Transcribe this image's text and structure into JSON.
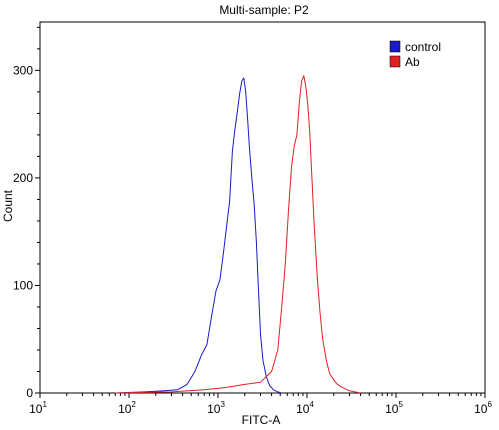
{
  "chart_data": {
    "type": "line",
    "title": "Multi-sample: P2",
    "xlabel": "FITC-A",
    "ylabel": "Count",
    "x_scale": "log",
    "xlim": [
      10,
      1000000
    ],
    "ylim": [
      0,
      345
    ],
    "grid": false,
    "legend_position": "top-right",
    "x_ticks": [
      {
        "base": "10",
        "exp": "1"
      },
      {
        "base": "10",
        "exp": "2"
      },
      {
        "base": "10",
        "exp": "3"
      },
      {
        "base": "10",
        "exp": "4"
      },
      {
        "base": "10",
        "exp": "5"
      },
      {
        "base": "10",
        "exp": "6"
      }
    ],
    "y_ticks": [
      "0",
      "100",
      "200",
      "300"
    ],
    "series": [
      {
        "name": "control",
        "color": "#1a1ac8",
        "x": [
          70,
          150,
          250,
          350,
          450,
          550,
          650,
          750,
          850,
          950,
          1050,
          1150,
          1250,
          1350,
          1450,
          1550,
          1650,
          1750,
          1850,
          1950,
          2050,
          2150,
          2250,
          2400,
          2550,
          2700,
          2850,
          3000,
          3200,
          3500,
          3800,
          4200,
          4700,
          5200
        ],
        "y": [
          0,
          1,
          2,
          3,
          8,
          20,
          35,
          45,
          72,
          95,
          105,
          130,
          155,
          178,
          225,
          245,
          262,
          278,
          290,
          293,
          280,
          255,
          230,
          200,
          175,
          140,
          95,
          55,
          30,
          15,
          7,
          3,
          1,
          0
        ]
      },
      {
        "name": "Ab",
        "color": "#e02020",
        "x": [
          70,
          300,
          700,
          1200,
          2000,
          3000,
          4000,
          4700,
          5200,
          5700,
          6200,
          6700,
          7200,
          7700,
          8200,
          8700,
          9200,
          9700,
          10200,
          10700,
          11200,
          12000,
          13000,
          14000,
          15000,
          16500,
          18000,
          20000,
          22000,
          25000,
          30000,
          40000
        ],
        "y": [
          0,
          1,
          3,
          5,
          8,
          10,
          20,
          40,
          80,
          120,
          170,
          210,
          230,
          240,
          270,
          290,
          295,
          285,
          268,
          245,
          210,
          160,
          110,
          75,
          50,
          30,
          18,
          12,
          8,
          5,
          2,
          0
        ]
      }
    ]
  }
}
